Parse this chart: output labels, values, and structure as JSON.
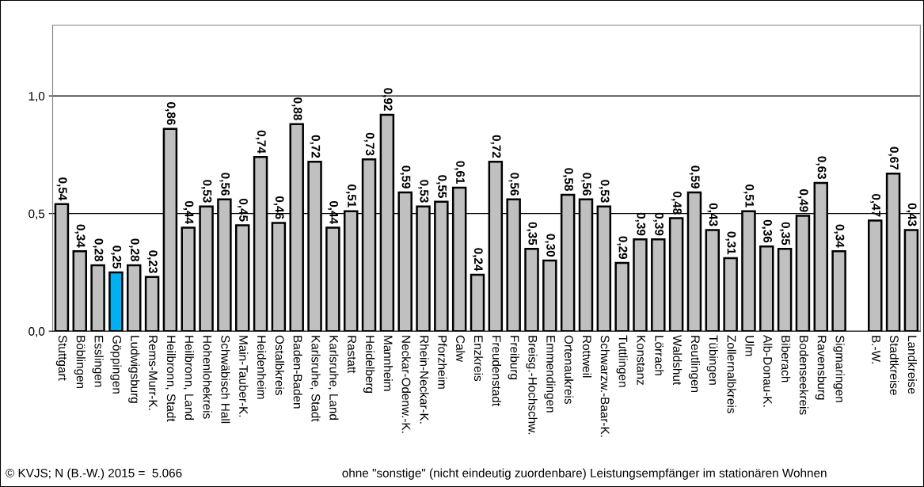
{
  "chart_data": {
    "type": "bar",
    "categories": [
      "Stuttgart",
      "Böblingen",
      "Esslingen",
      "Göppingen",
      "Ludwigsburg",
      "Rems-Murr-K.",
      "Heilbronn, Stadt",
      "Heilbronn, Land",
      "Hohenlohekreis",
      "Schwäbisch Hall",
      "Main-Tauber-K.",
      "Heidenheim",
      "Ostalbkreis",
      "Baden-Baden",
      "Karlsruhe, Stadt",
      "Karlsruhe, Land",
      "Rastatt",
      "Heidelberg",
      "Mannheim",
      "Neckar-Odenw.-K.",
      "Rhein-Neckar-K.",
      "Pforzheim",
      "Calw",
      "Enzkreis",
      "Freudenstadt",
      "Freiburg",
      "Breisg.-Hochschw.",
      "Emmendingen",
      "Ortenaukreis",
      "Rottweil",
      "Schwarzw.-Baar-K.",
      "Tuttlingen",
      "Konstanz",
      "Lörrach",
      "Waldshut",
      "Reutlingen",
      "Tübingen",
      "Zollernalbkreis",
      "Ulm",
      "Alb-Donau-K.",
      "Biberach",
      "Bodenseekreis",
      "Ravensburg",
      "Sigmaringen",
      null,
      "B.-W.",
      "Stadtkreise",
      "Landkreise"
    ],
    "values": [
      0.54,
      0.34,
      0.28,
      0.25,
      0.28,
      0.23,
      0.86,
      0.44,
      0.53,
      0.56,
      0.45,
      0.74,
      0.46,
      0.88,
      0.72,
      0.44,
      0.51,
      0.73,
      0.92,
      0.59,
      0.53,
      0.55,
      0.61,
      0.24,
      0.72,
      0.56,
      0.35,
      0.3,
      0.58,
      0.56,
      0.53,
      0.29,
      0.39,
      0.39,
      0.48,
      0.59,
      0.43,
      0.31,
      0.51,
      0.36,
      0.35,
      0.49,
      0.63,
      0.34,
      null,
      0.47,
      0.67,
      0.43
    ],
    "value_labels": [
      "0,54",
      "0,34",
      "0,28",
      "0,25",
      "0,28",
      "0,23",
      "0,86",
      "0,44",
      "0,53",
      "0,56",
      "0,45",
      "0,74",
      "0,46",
      "0,88",
      "0,72",
      "0,44",
      "0,51",
      "0,73",
      "0,92",
      "0,59",
      "0,53",
      "0,55",
      "0,61",
      "0,24",
      "0,72",
      "0,56",
      "0,35",
      "0,30",
      "0,58",
      "0,56",
      "0,53",
      "0,29",
      "0,39",
      "0,39",
      "0,48",
      "0,59",
      "0,43",
      "0,31",
      "0,51",
      "0,36",
      "0,35",
      "0,49",
      "0,63",
      "0,34",
      null,
      "0,47",
      "0,67",
      "0,43"
    ],
    "colors": [
      "#c0c0c0",
      "#c0c0c0",
      "#c0c0c0",
      "#00b0f0",
      "#c0c0c0",
      "#c0c0c0",
      "#c0c0c0",
      "#c0c0c0",
      "#c0c0c0",
      "#c0c0c0",
      "#c0c0c0",
      "#c0c0c0",
      "#c0c0c0",
      "#c0c0c0",
      "#c0c0c0",
      "#c0c0c0",
      "#c0c0c0",
      "#c0c0c0",
      "#c0c0c0",
      "#c0c0c0",
      "#c0c0c0",
      "#c0c0c0",
      "#c0c0c0",
      "#c0c0c0",
      "#c0c0c0",
      "#c0c0c0",
      "#c0c0c0",
      "#c0c0c0",
      "#c0c0c0",
      "#c0c0c0",
      "#c0c0c0",
      "#c0c0c0",
      "#c0c0c0",
      "#c0c0c0",
      "#c0c0c0",
      "#c0c0c0",
      "#c0c0c0",
      "#c0c0c0",
      "#c0c0c0",
      "#c0c0c0",
      "#c0c0c0",
      "#c0c0c0",
      "#c0c0c0",
      "#c0c0c0",
      "#c0c0c0",
      "#c0c0c0",
      "#c0c0c0",
      "#c0c0c0"
    ],
    "ylim": [
      0,
      1.3
    ],
    "yticks": [
      {
        "value": 0,
        "label": "0,0"
      },
      {
        "value": 0.5,
        "label": "0,5"
      },
      {
        "value": 1.0,
        "label": "1,0"
      }
    ],
    "grid": "y",
    "annotations": [
      "© KVJS; N (B.-W.) 2015 =  5.066",
      "ohne \"sonstige\" (nicht eindeutig zuordenbare) Leistungsempfänger im stationären Wohnen"
    ]
  }
}
